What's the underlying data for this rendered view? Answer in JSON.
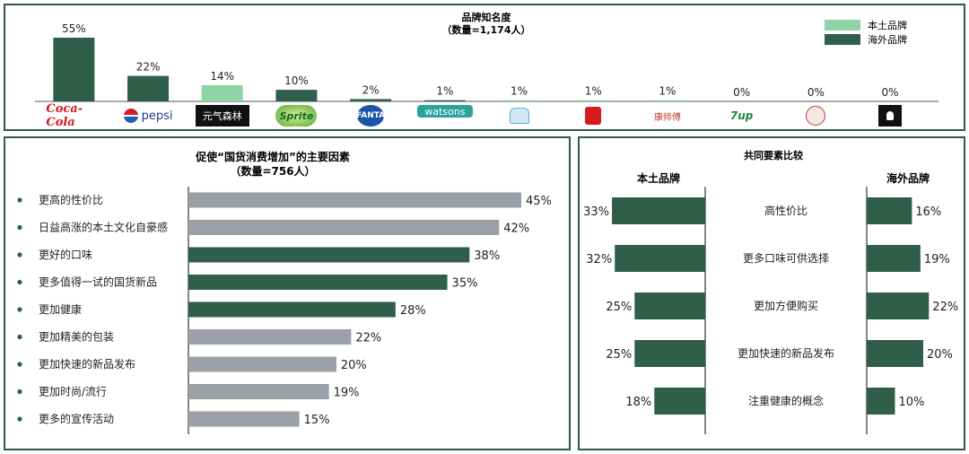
{
  "colors": {
    "local": "#8fd3a6",
    "foreign": "#2f5e4b",
    "gray": "#9aa0a6",
    "border": "#2f5a46"
  },
  "top": {
    "title": "品牌知名度",
    "subtitle": "（数量=1,174人）",
    "legend": [
      {
        "label": "本土品牌",
        "color": "#8fd3a6"
      },
      {
        "label": "海外品牌",
        "color": "#2f5e4b"
      }
    ],
    "chart_data": {
      "type": "bar",
      "title": "品牌知名度",
      "subtitle": "（数量=1,174人）",
      "categories": [
        "coca-cola",
        "pepsi",
        "元气森林",
        "sprite",
        "fanta",
        "watsons",
        "bingquan",
        "jianlibao",
        "kangshifu",
        "7up",
        "beibingyang",
        "nongfu"
      ],
      "values": [
        55,
        22,
        14,
        10,
        2,
        1,
        1,
        1,
        1,
        0,
        0,
        0
      ],
      "labels": [
        "55%",
        "22%",
        "14%",
        "10%",
        "2%",
        "1%",
        "1%",
        "1%",
        "1%",
        "0%",
        "0%",
        "0%"
      ],
      "origin": [
        "foreign",
        "foreign",
        "local",
        "foreign",
        "foreign",
        "foreign",
        "local",
        "local",
        "local",
        "foreign",
        "local",
        "local"
      ],
      "ylim": [
        0,
        55
      ]
    },
    "logos": [
      {
        "icon": "coca-cola-logo",
        "text": "Coca-Cola"
      },
      {
        "icon": "pepsi-logo",
        "text": "pepsi"
      },
      {
        "icon": "genki-forest-logo",
        "text": "元气森林"
      },
      {
        "icon": "sprite-logo",
        "text": "Sprite"
      },
      {
        "icon": "fanta-logo",
        "text": "FANTA"
      },
      {
        "icon": "watsons-logo",
        "text": "watsons"
      },
      {
        "icon": "bingquan-logo",
        "text": ""
      },
      {
        "icon": "jianlibao-logo",
        "text": ""
      },
      {
        "icon": "kangshifu-logo",
        "text": "康师傅"
      },
      {
        "icon": "7up-logo",
        "text": "7up"
      },
      {
        "icon": "arctic-ocean-logo",
        "text": ""
      },
      {
        "icon": "black-bottle-logo",
        "text": ""
      }
    ]
  },
  "left": {
    "title": "促使“国货消费增加”的主要因素",
    "subtitle": "（数量=756人）",
    "chart_data": {
      "type": "bar",
      "orientation": "horizontal",
      "title": "促使“国货消费增加”的主要因素",
      "subtitle": "（数量=756人）",
      "categories": [
        "更高的性价比",
        "日益高涨的本土文化自豪感",
        "更好的口味",
        "更多值得一试的国货新品",
        "更加健康",
        "更加精美的包装",
        "更加快速的新品发布",
        "更加时尚/流行",
        "更多的宣传活动"
      ],
      "values": [
        45,
        42,
        38,
        35,
        28,
        22,
        20,
        19,
        15
      ],
      "labels": [
        "45%",
        "42%",
        "38%",
        "35%",
        "28%",
        "22%",
        "20%",
        "19%",
        "15%"
      ],
      "highlight": [
        false,
        false,
        true,
        true,
        true,
        false,
        false,
        false,
        false
      ],
      "xlim": [
        0,
        45
      ]
    }
  },
  "right": {
    "title": "共同要素比较",
    "left_header": "本土品牌",
    "right_header": "海外品牌",
    "chart_data": {
      "type": "bar",
      "orientation": "horizontal",
      "title": "共同要素比较",
      "categories": [
        "高性价比",
        "更多口味可供选择",
        "更加方便购买",
        "更加快速的新品发布",
        "注重健康的概念"
      ],
      "series": [
        {
          "name": "本土品牌",
          "values": [
            33,
            32,
            25,
            25,
            18
          ],
          "labels": [
            "33%",
            "32%",
            "25%",
            "25%",
            "18%"
          ]
        },
        {
          "name": "海外品牌",
          "values": [
            16,
            19,
            22,
            20,
            10
          ],
          "labels": [
            "16%",
            "19%",
            "22%",
            "20%",
            "10%"
          ]
        }
      ]
    }
  }
}
